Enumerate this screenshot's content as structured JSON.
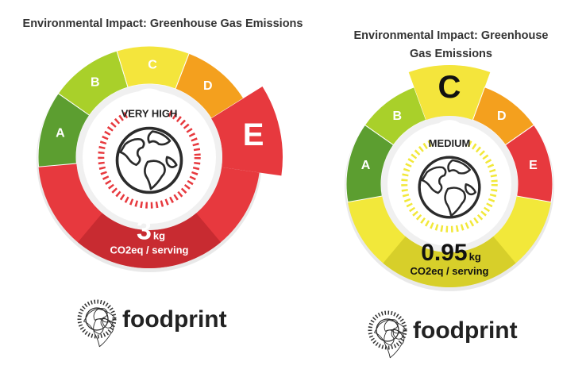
{
  "left": {
    "title": "Environmental Impact: Greenhouse Gas Emissions",
    "grades": [
      "A",
      "B",
      "C",
      "D",
      "E"
    ],
    "level": "VERY HIGH",
    "amount": 3,
    "unit": "kg",
    "basis": "CO2eq / serving",
    "brand": "foodprint"
  },
  "right": {
    "title": "Environmental Impact: Greenhouse Gas Emissions",
    "grades": [
      "A",
      "B",
      "C",
      "D",
      "E"
    ],
    "level": "MEDIUM",
    "amount": 0.95,
    "unit": "kg",
    "basis": "CO2eq / serving",
    "brand": "foodprint"
  }
}
